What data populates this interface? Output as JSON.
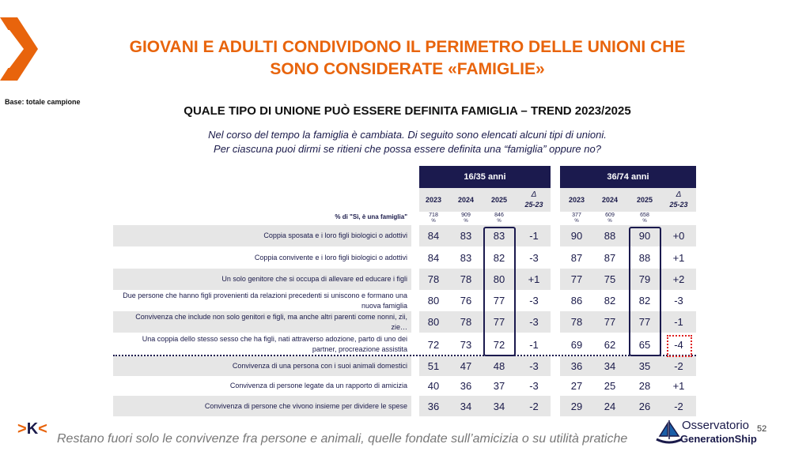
{
  "title": [
    "GIOVANI E ADULTI CONDIVIDONO IL PERIMETRO DELLE UNIONI CHE",
    "SONO CONSIDERATE «FAMIGLIE»"
  ],
  "base": "Base: totale campione",
  "subtitle": "QUALE TIPO DI UNIONE PUÒ ESSERE DEFINITA FAMIGLIA – TREND 2023/2025",
  "question": [
    "Nel corso del tempo la famiglia è cambiata. Di seguito sono elencati alcuni tipi di unioni.",
    "Per ciascuna puoi dirmi se ritieni che possa essere definita una “famiglia” oppure no?"
  ],
  "table": {
    "measure_label": "% di \"Sì, è una famiglia\"",
    "groups": [
      {
        "name": "16/35 anni",
        "columns": [
          "2023",
          "2024",
          "2025"
        ],
        "delta": {
          "symbol": "Δ",
          "label": "25-23"
        },
        "samples": [
          "718",
          "909",
          "846"
        ],
        "sample_unit": "%"
      },
      {
        "name": "36/74 anni",
        "columns": [
          "2023",
          "2024",
          "2025"
        ],
        "delta": {
          "symbol": "Δ",
          "label": "25-23"
        },
        "samples": [
          "377",
          "609",
          "658"
        ],
        "sample_unit": "%"
      }
    ],
    "rows": [
      {
        "label": "Coppia sposata e i loro figli biologici o adottivi",
        "values": [
          [
            84,
            83,
            83,
            "-1"
          ],
          [
            90,
            88,
            90,
            "+0"
          ]
        ]
      },
      {
        "label": "Coppia convivente e i loro figli biologici o adottivi",
        "values": [
          [
            84,
            83,
            82,
            "-3"
          ],
          [
            87,
            87,
            88,
            "+1"
          ]
        ]
      },
      {
        "label": "Un solo genitore che si occupa di allevare ed educare i figli",
        "values": [
          [
            78,
            78,
            80,
            "+1"
          ],
          [
            77,
            75,
            79,
            "+2"
          ]
        ]
      },
      {
        "label": "Due persone che hanno figli provenienti da relazioni precedenti si uniscono e formano una nuova famiglia",
        "values": [
          [
            80,
            76,
            77,
            "-3"
          ],
          [
            86,
            82,
            82,
            "-3"
          ]
        ]
      },
      {
        "label": "Convivenza che include non solo genitori e figli, ma anche altri parenti come nonni, zii, zie…",
        "values": [
          [
            80,
            78,
            77,
            "-3"
          ],
          [
            78,
            77,
            77,
            "-1"
          ]
        ]
      },
      {
        "label": "Una coppia dello stesso sesso che ha figli, nati attraverso adozione, parto di uno dei partner, procreazione assistita",
        "values": [
          [
            72,
            73,
            72,
            "-1"
          ],
          [
            69,
            62,
            65,
            "-4"
          ]
        ]
      },
      {
        "label": "Convivenza di una persona con i suoi animali domestici",
        "values": [
          [
            51,
            47,
            48,
            "-3"
          ],
          [
            36,
            34,
            35,
            "-2"
          ]
        ]
      },
      {
        "label": "Convivenza di persone legate da un rapporto di amicizia",
        "values": [
          [
            40,
            36,
            37,
            "-3"
          ],
          [
            27,
            25,
            28,
            "+1"
          ]
        ]
      },
      {
        "label": "Convivenza di persone che vivono insieme per dividere le spese",
        "values": [
          [
            36,
            34,
            34,
            "-2"
          ],
          [
            29,
            24,
            26,
            "-2"
          ]
        ]
      }
    ]
  },
  "footer": "Restano fuori solo le convivenze fra persone e animali, quelle fondate sull’amicizia o su utilità pratiche",
  "logo": {
    "line1": "Osservatorio",
    "line2": "GenerationShip"
  },
  "page_number": "52"
}
